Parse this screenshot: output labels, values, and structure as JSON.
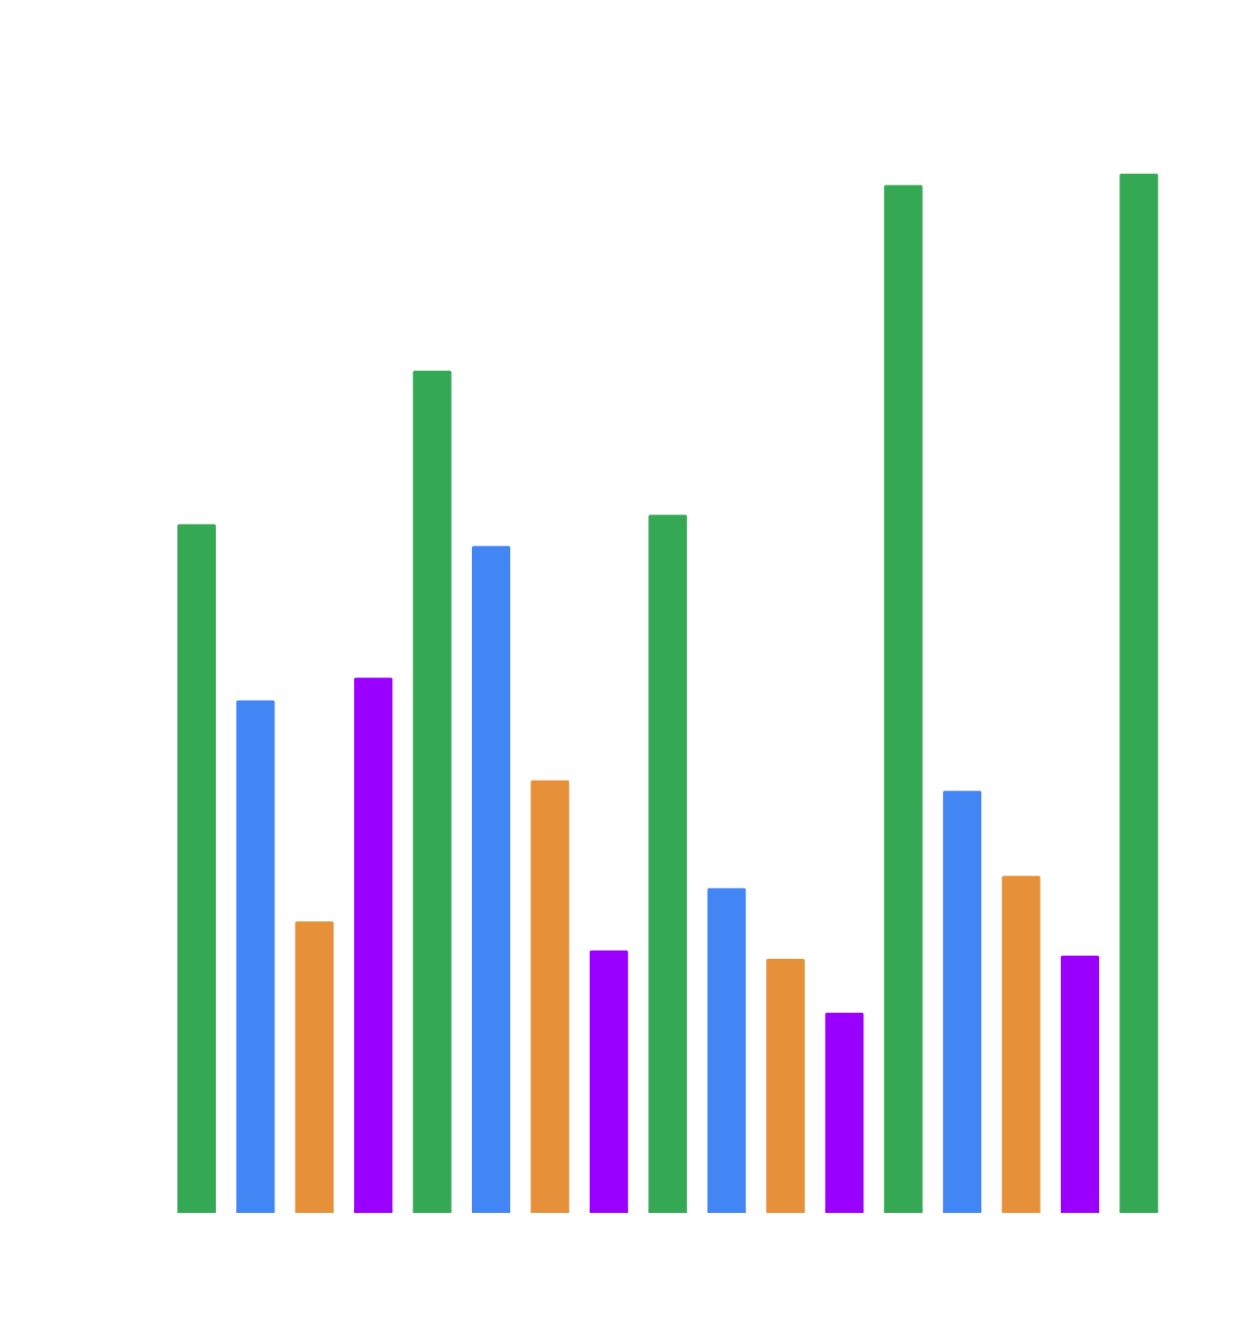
{
  "chart_data": {
    "type": "bar",
    "title": "",
    "xlabel": "",
    "ylabel": "",
    "grid": false,
    "ylim": [
      0,
      1000
    ],
    "values": [
      664,
      494,
      281,
      516,
      812,
      643,
      417,
      253,
      673,
      313,
      245,
      193,
      991,
      407,
      325,
      248,
      1002
    ],
    "bar_colors": [
      "#34a853",
      "#4285f4",
      "#e6913a",
      "#9900ff",
      "#34a853",
      "#4285f4",
      "#e6913a",
      "#9900ff",
      "#34a853",
      "#4285f4",
      "#e6913a",
      "#9900ff",
      "#34a853",
      "#4285f4",
      "#e6913a",
      "#9900ff",
      "#34a853"
    ]
  }
}
